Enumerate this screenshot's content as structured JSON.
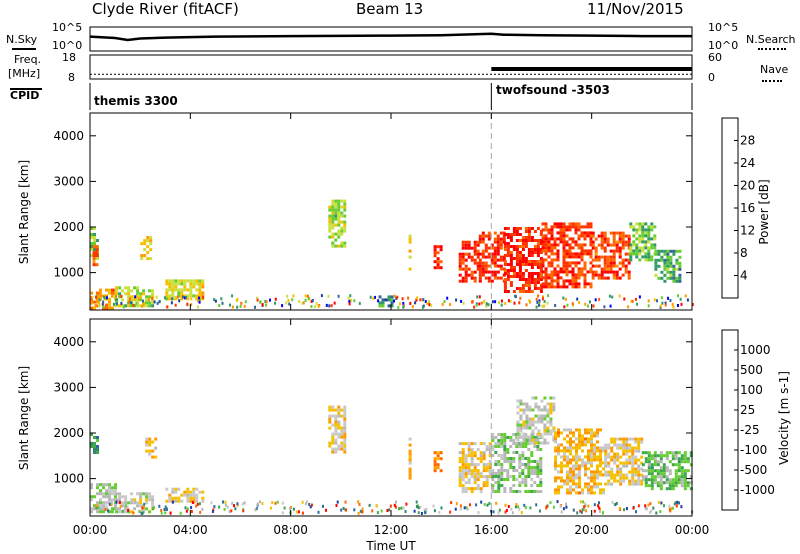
{
  "header": {
    "title_left": "Clyde River (fitACF)",
    "title_center": "Beam 13",
    "title_right": "11/Nov/2015"
  },
  "nsky_panel": {
    "left_label": "N.Sky",
    "right_label": "N.Search",
    "left_ticks": [
      "10^5",
      "10^0"
    ],
    "right_ticks": [
      "10^5",
      "10^0"
    ]
  },
  "freq_panel": {
    "left_label_1": "Freq.",
    "left_label_2": "[MHz]",
    "right_label": "Nave",
    "left_ticks": [
      "18",
      "8"
    ],
    "right_ticks": [
      "60",
      "0"
    ]
  },
  "cpid_panel": {
    "label": "CPID",
    "modes": [
      {
        "name": "themis 3300",
        "start_hour": 0
      },
      {
        "name": "twofsound -3503",
        "start_hour": 16
      }
    ]
  },
  "x_axis": {
    "label": "Time UT",
    "ticks": [
      "00:00",
      "04:00",
      "08:00",
      "12:00",
      "16:00",
      "20:00",
      "00:00"
    ]
  },
  "colorbars": {
    "power": {
      "label": "Power [dB]",
      "ticks": [
        "28",
        "24",
        "20",
        "16",
        "12",
        "8",
        "4"
      ],
      "colors": [
        "#ff0000",
        "#ff3300",
        "#ff6600",
        "#ff9900",
        "#f5c000",
        "#c8e040",
        "#66cc33",
        "#339966",
        "#336699",
        "#1f3f99",
        "#0000ff"
      ]
    },
    "velocity": {
      "label": "Velocity [m s-1]",
      "ticks": [
        "1000",
        "500",
        "100",
        "25",
        "-25",
        "-100",
        "-500",
        "-1000"
      ],
      "colors": [
        "#1e3ca8",
        "#2b6aa0",
        "#2e8a6a",
        "#3ca84a",
        "#66cc33",
        "#b8b8b8",
        "#c8c8c8",
        "#f5c000",
        "#ff9900",
        "#ff6600",
        "#ff3300",
        "#ff0000"
      ]
    }
  },
  "chart_data": [
    {
      "type": "line",
      "title": "N.Sky / N.Search",
      "x_range_hours": [
        0,
        24
      ],
      "series": [
        {
          "name": "N.Sky",
          "x": [
            0,
            1,
            1.5,
            2,
            3,
            5,
            8,
            12,
            14,
            16,
            16.5,
            18,
            20,
            22,
            24
          ],
          "y": [
            3.0,
            2.7,
            2.3,
            2.6,
            2.8,
            3.0,
            3.1,
            3.2,
            3.3,
            3.6,
            3.4,
            3.3,
            3.2,
            3.1,
            3.1
          ]
        }
      ]
    },
    {
      "type": "line",
      "title": "Freq / Nave",
      "x_range_hours": [
        0,
        24
      ],
      "series": [
        {
          "name": "Freq",
          "x": [
            0,
            24
          ],
          "y": [
            10,
            10
          ]
        },
        {
          "name": "Nave",
          "x": [
            16,
            24
          ],
          "y": [
            20,
            30
          ]
        }
      ]
    },
    {
      "type": "heatmap",
      "title": "Power",
      "xlabel": "Time UT",
      "ylabel": "Slant Range [km]",
      "xlim": [
        0,
        24
      ],
      "ylim": [
        180,
        4500
      ],
      "yticks": [
        1000,
        2000,
        3000,
        4000
      ],
      "clim": [
        0,
        30
      ],
      "blobs": [
        {
          "t": [
            0.0,
            0.3
          ],
          "r": [
            1300,
            2000
          ],
          "v": 12
        },
        {
          "t": [
            0.1,
            0.3
          ],
          "r": [
            1200,
            1600
          ],
          "v": 26
        },
        {
          "t": [
            0.0,
            1.0
          ],
          "r": [
            250,
            650
          ],
          "v": 22
        },
        {
          "t": [
            1.0,
            2.5
          ],
          "r": [
            300,
            700
          ],
          "v": 14
        },
        {
          "t": [
            2.0,
            2.4
          ],
          "r": [
            1300,
            1800
          ],
          "v": 18
        },
        {
          "t": [
            3.0,
            4.5
          ],
          "r": [
            450,
            850
          ],
          "v": 16
        },
        {
          "t": [
            9.5,
            10.2
          ],
          "r": [
            1600,
            2600
          ],
          "v": 14
        },
        {
          "t": [
            11.5,
            12.0
          ],
          "r": [
            250,
            500
          ],
          "v": 8
        },
        {
          "t": [
            12.7,
            12.8
          ],
          "r": [
            1000,
            1900
          ],
          "v": 18
        },
        {
          "t": [
            13.7,
            14.0
          ],
          "r": [
            1100,
            1600
          ],
          "v": 28
        },
        {
          "t": [
            14.7,
            15.5
          ],
          "r": [
            800,
            1700
          ],
          "v": 28
        },
        {
          "t": [
            15.5,
            16.5
          ],
          "r": [
            800,
            1900
          ],
          "v": 28
        },
        {
          "t": [
            16.5,
            18.0
          ],
          "r": [
            600,
            2000
          ],
          "v": 28
        },
        {
          "t": [
            18.0,
            20.0
          ],
          "r": [
            700,
            2100
          ],
          "v": 27
        },
        {
          "t": [
            20.0,
            21.5
          ],
          "r": [
            900,
            1900
          ],
          "v": 26
        },
        {
          "t": [
            21.5,
            22.5
          ],
          "r": [
            1300,
            2100
          ],
          "v": 12
        },
        {
          "t": [
            22.5,
            23.5
          ],
          "r": [
            800,
            1500
          ],
          "v": 10
        }
      ]
    },
    {
      "type": "heatmap",
      "title": "Velocity",
      "xlabel": "Time UT",
      "ylabel": "Slant Range [km]",
      "xlim": [
        0,
        24
      ],
      "ylim": [
        180,
        4500
      ],
      "yticks": [
        1000,
        2000,
        3000,
        4000
      ],
      "clim": [
        -1000,
        1000
      ],
      "blobs": [
        {
          "t": [
            0.0,
            0.3
          ],
          "r": [
            1500,
            2000
          ],
          "v": 600
        },
        {
          "t": [
            0.0,
            1.0
          ],
          "r": [
            300,
            900
          ],
          "v": 120
        },
        {
          "t": [
            1.0,
            2.5
          ],
          "r": [
            300,
            700
          ],
          "v": 0
        },
        {
          "t": [
            2.2,
            2.6
          ],
          "r": [
            1500,
            1900
          ],
          "v": -200
        },
        {
          "t": [
            3.0,
            4.5
          ],
          "r": [
            500,
            800
          ],
          "v": -200
        },
        {
          "t": [
            9.5,
            10.2
          ],
          "r": [
            1600,
            2600
          ],
          "v": -200
        },
        {
          "t": [
            12.7,
            12.8
          ],
          "r": [
            1000,
            1900
          ],
          "v": -300
        },
        {
          "t": [
            13.7,
            14.0
          ],
          "r": [
            1100,
            1600
          ],
          "v": -400
        },
        {
          "t": [
            14.7,
            16.0
          ],
          "r": [
            700,
            1800
          ],
          "v": -200
        },
        {
          "t": [
            16.0,
            18.0
          ],
          "r": [
            700,
            2000
          ],
          "v": 200
        },
        {
          "t": [
            17.0,
            18.5
          ],
          "r": [
            1800,
            2800
          ],
          "v": 0
        },
        {
          "t": [
            18.5,
            20.5
          ],
          "r": [
            700,
            2100
          ],
          "v": -300
        },
        {
          "t": [
            20.5,
            22.0
          ],
          "r": [
            900,
            1900
          ],
          "v": -200
        },
        {
          "t": [
            22.0,
            24.0
          ],
          "r": [
            800,
            1600
          ],
          "v": 300
        }
      ]
    }
  ]
}
